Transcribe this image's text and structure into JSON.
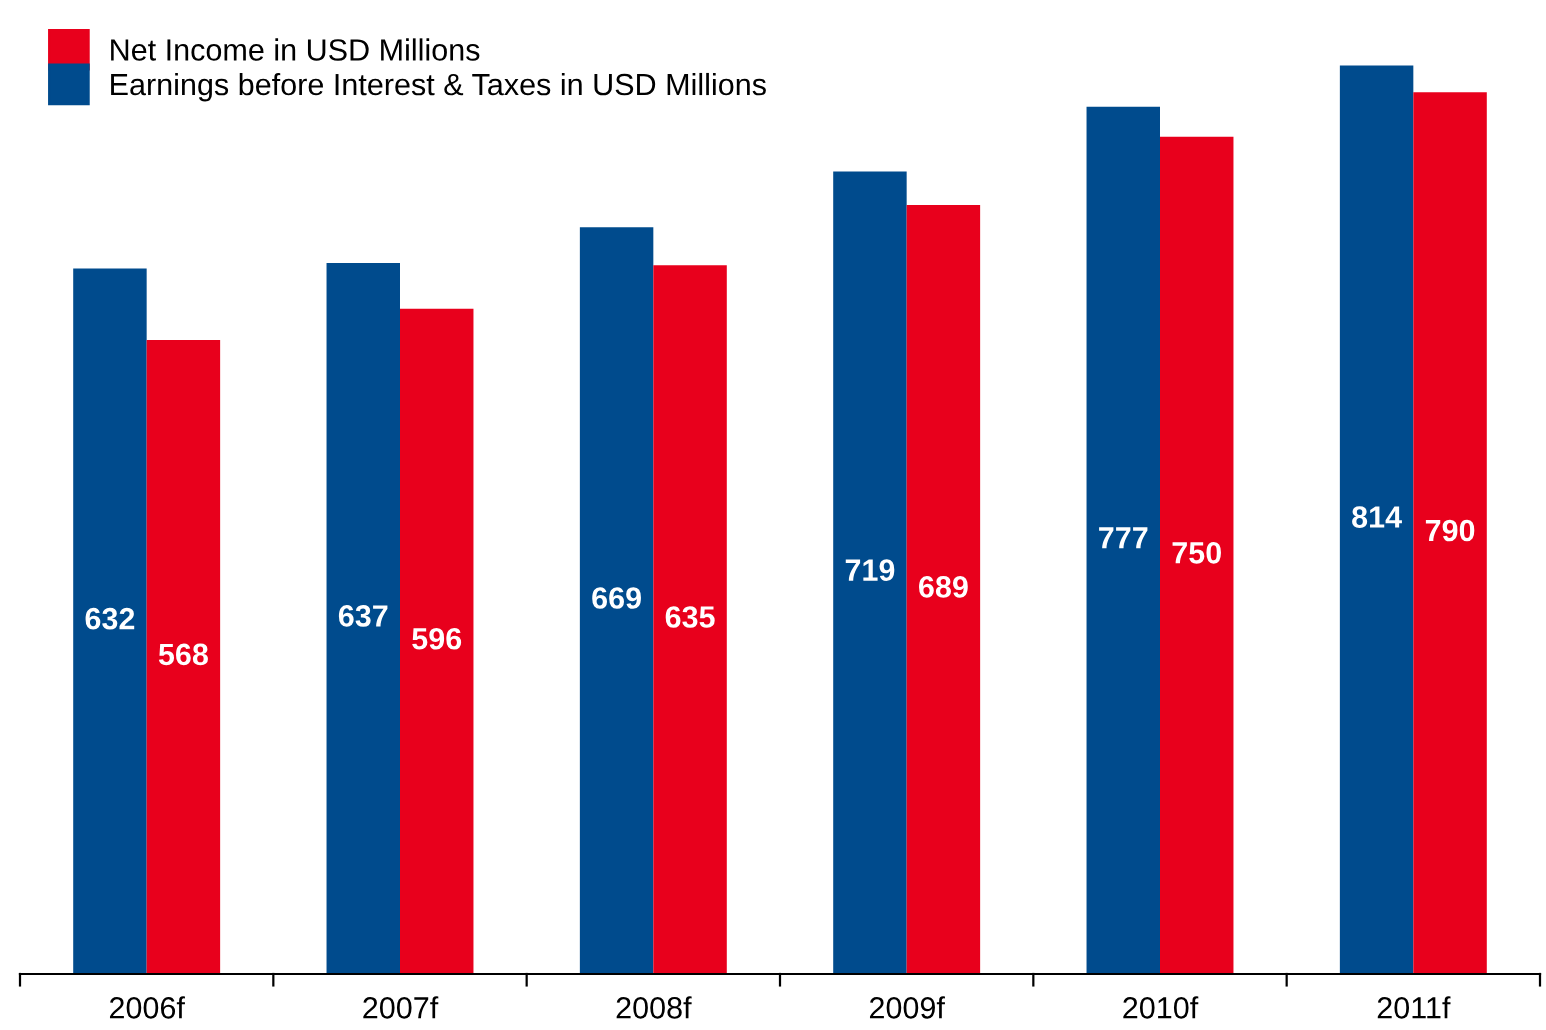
{
  "chart_data": {
    "type": "bar",
    "categories": [
      "2006f",
      "2007f",
      "2008f",
      "2009f",
      "2010f",
      "2011f"
    ],
    "series": [
      {
        "name": "Earnings before Interest & Taxes in USD Millions",
        "color": "#004b8d",
        "values": [
          632,
          637,
          669,
          719,
          777,
          814
        ]
      },
      {
        "name": "Net Income in USD Millions",
        "color": "#e8001c",
        "values": [
          568,
          596,
          635,
          689,
          750,
          790
        ]
      }
    ],
    "tick_labels": "x",
    "data_labels": true,
    "grid": false,
    "legend": "top left"
  }
}
